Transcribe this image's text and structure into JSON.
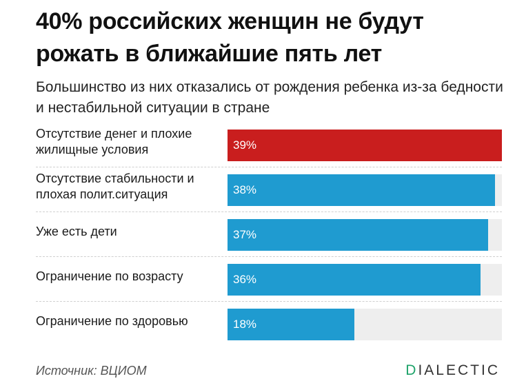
{
  "title": "40% российских женщин не будут рожать в ближайшие пять лет",
  "subtitle": "Большинство из них отказались от рождения ребенка из-за бедности и нестабильной ситуации в стране",
  "source": "Источник: ВЦИОМ",
  "brand": {
    "first_letter": "D",
    "rest": "IALECTIC"
  },
  "colors": {
    "highlight": "#c91e1e",
    "bar": "#1f9bd0",
    "track": "#eeeeee",
    "brand_accent": "#1fa36a"
  },
  "chart_data": {
    "type": "bar",
    "orientation": "horizontal",
    "categories": [
      "Отсутствие денег и плохие жилищные условия",
      "Отсутствие стабильности и плохая полит.ситуация",
      "Уже есть дети",
      "Ограничение по возрасту",
      "Ограничение по здоровью"
    ],
    "values": [
      39,
      38,
      37,
      36,
      18
    ],
    "value_labels": [
      "39%",
      "38%",
      "37%",
      "36%",
      "18%"
    ],
    "highlight_index": 0,
    "xlim": [
      0,
      39
    ],
    "grid": false
  }
}
